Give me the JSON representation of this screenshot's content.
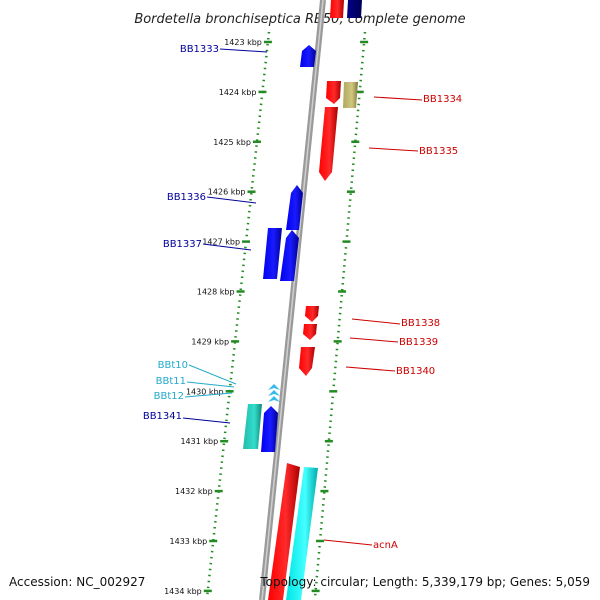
{
  "title": "Bordetella bronchiseptica RB50, complete genome",
  "footer": {
    "accession": "Accession: NC_002927",
    "topology": "Topology: circular; Length: 5,339,179 bp; Genes: 5,059"
  },
  "colors": {
    "forward_gene": "#0000ff",
    "reverse_gene": "#ff0000",
    "trna": "#33bbee",
    "tick": "#228b22",
    "backbone": "#888888",
    "label_forward": "#000099",
    "label_reverse": "#cc0000",
    "label_trna": "#22aacc"
  },
  "kbp_ticks": [
    "1423 kbp",
    "1424 kbp",
    "1425 kbp",
    "1426 kbp",
    "1427 kbp",
    "1428 kbp",
    "1429 kbp",
    "1430 kbp",
    "1431 kbp",
    "1432 kbp",
    "1433 kbp",
    "1434 kbp"
  ],
  "gene_labels": [
    {
      "text": "BB1333",
      "strand": "forward"
    },
    {
      "text": "BB1334",
      "strand": "reverse"
    },
    {
      "text": "BB1335",
      "strand": "reverse"
    },
    {
      "text": "BB1336",
      "strand": "forward"
    },
    {
      "text": "BB1337",
      "strand": "forward"
    },
    {
      "text": "BB1338",
      "strand": "reverse"
    },
    {
      "text": "BB1339",
      "strand": "reverse"
    },
    {
      "text": "BB1340",
      "strand": "reverse"
    },
    {
      "text": "BBt10",
      "strand": "trna"
    },
    {
      "text": "BBt11",
      "strand": "trna"
    },
    {
      "text": "BBt12",
      "strand": "trna"
    },
    {
      "text": "BB1341",
      "strand": "forward"
    },
    {
      "text": "acnA",
      "strand": "reverse"
    }
  ]
}
